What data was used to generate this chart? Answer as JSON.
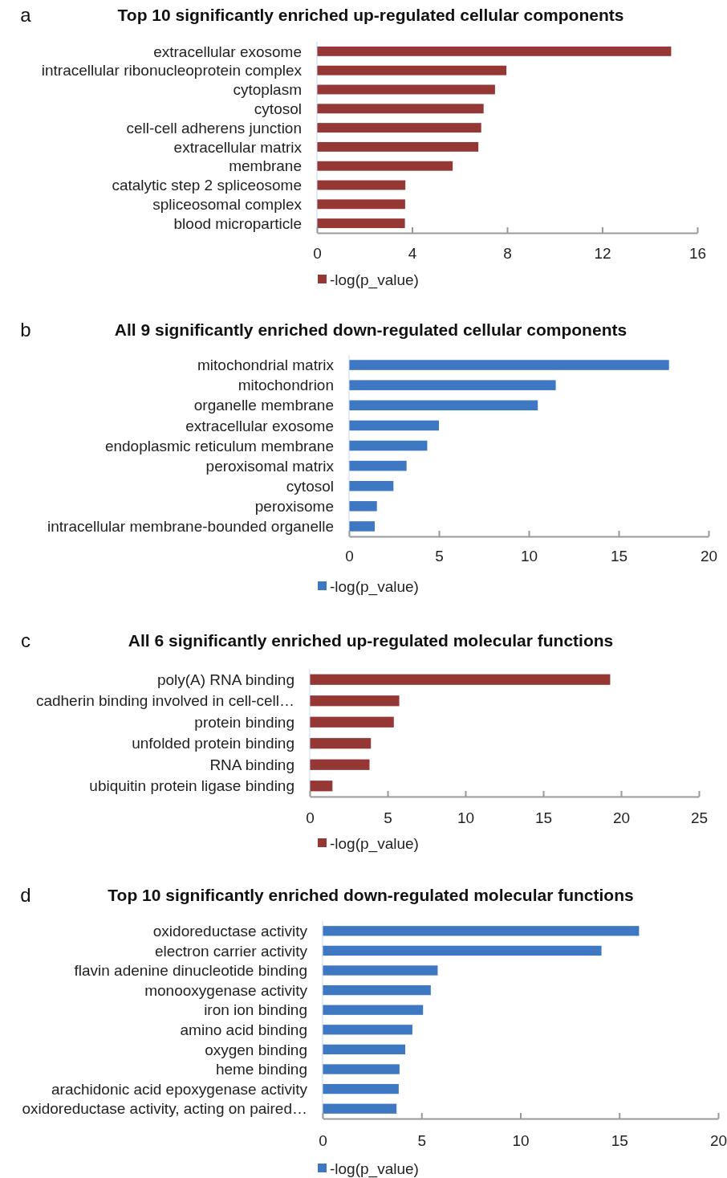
{
  "chart_data": [
    {
      "type": "bar",
      "orientation": "horizontal",
      "title": "Top 10 significantly enriched up-regulated cellular components",
      "annotations": [
        "a"
      ],
      "categories": [
        "extracellular exosome",
        "intracellular ribonucleoprotein complex",
        "cytoplasm",
        "cytosol",
        "cell-cell adherens junction",
        "extracellular matrix",
        "membrane",
        "catalytic step 2 spliceosome",
        "spliceosomal complex",
        "blood microparticle"
      ],
      "series": [
        {
          "name": "-log(p_value)",
          "color": "#953735",
          "values": [
            14.9,
            7.97,
            7.49,
            7.01,
            6.91,
            6.79,
            5.71,
            3.72,
            3.71,
            3.7
          ]
        }
      ],
      "xlim": [
        0,
        16
      ],
      "xticks": [
        0,
        4,
        8,
        12,
        16
      ],
      "legend": "bottom",
      "grid": false
    },
    {
      "type": "bar",
      "orientation": "horizontal",
      "title": "All 9 significantly enriched down-regulated cellular components",
      "annotations": [
        "b"
      ],
      "categories": [
        "mitochondrial matrix",
        "mitochondrion",
        "organelle membrane",
        "extracellular exosome",
        "endoplasmic reticulum membrane",
        "peroxisomal matrix",
        "cytosol",
        "peroxisome",
        "intracellular membrane-bounded organelle"
      ],
      "series": [
        {
          "name": "-log(p_value)",
          "color": "#3f78c2",
          "values": [
            17.8,
            11.5,
            10.5,
            5.0,
            4.35,
            3.2,
            2.47,
            1.55,
            1.43
          ]
        }
      ],
      "xlim": [
        0,
        20
      ],
      "xticks": [
        0,
        5,
        10,
        15,
        20
      ],
      "legend": "bottom",
      "grid": false
    },
    {
      "type": "bar",
      "orientation": "horizontal",
      "title": "All 6 significantly enriched up-regulated molecular functions",
      "annotations": [
        "c"
      ],
      "categories": [
        "poly(A) RNA binding",
        "cadherin binding involved in cell-cell…",
        "protein binding",
        "unfolded protein binding",
        "RNA binding",
        "ubiquitin protein ligase binding"
      ],
      "series": [
        {
          "name": "-log(p_value)",
          "color": "#953735",
          "values": [
            19.3,
            5.75,
            5.4,
            3.93,
            3.84,
            1.46
          ]
        }
      ],
      "xlim": [
        0,
        25
      ],
      "xticks": [
        0,
        5,
        10,
        15,
        20,
        25
      ],
      "legend": "bottom",
      "grid": false
    },
    {
      "type": "bar",
      "orientation": "horizontal",
      "title": "Top 10 significantly enriched down-regulated molecular functions",
      "annotations": [
        "d"
      ],
      "categories": [
        "oxidoreductase activity",
        "electron carrier activity",
        "flavin adenine dinucleotide binding",
        "monooxygenase activity",
        "iron ion binding",
        "amino acid binding",
        "oxygen binding",
        "heme binding",
        "arachidonic acid epoxygenase activity",
        "oxidoreductase activity, acting on paired…"
      ],
      "series": [
        {
          "name": "-log(p_value)",
          "color": "#3f78c2",
          "values": [
            16.0,
            14.1,
            5.82,
            5.47,
            5.08,
            4.54,
            4.18,
            3.89,
            3.85,
            3.74
          ]
        }
      ],
      "xlim": [
        0,
        20
      ],
      "xticks": [
        0,
        5,
        10,
        15,
        20
      ],
      "legend": "bottom",
      "grid": false
    }
  ]
}
